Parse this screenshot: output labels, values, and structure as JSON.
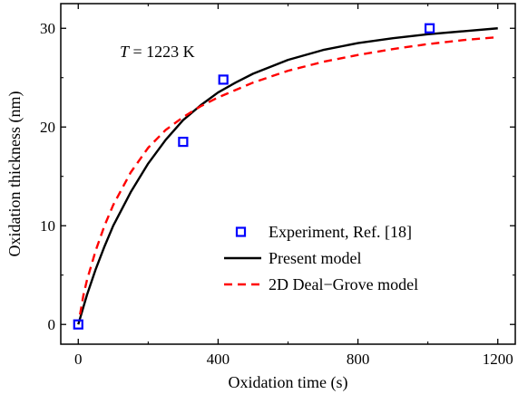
{
  "chart_data": {
    "type": "line",
    "xlabel": "Oxidation time (s)",
    "ylabel": "Oxidation thickness (nm)",
    "xlim": [
      -50,
      1250
    ],
    "ylim": [
      -2,
      32.5
    ],
    "xticks": [
      0,
      400,
      800,
      1200
    ],
    "yticks": [
      0,
      10,
      20,
      30
    ],
    "grid": false,
    "legend_position": "center-right",
    "annotation": {
      "var": "T",
      "rest": " = 1223 K"
    },
    "series": [
      {
        "name": "Experiment, Ref. [18]",
        "kind": "scatter",
        "marker": "open-square",
        "color": "#0000ff",
        "x": [
          0,
          300,
          415,
          1005
        ],
        "y": [
          0,
          18.5,
          24.8,
          30
        ]
      },
      {
        "name": "Present model",
        "kind": "line",
        "style": "solid",
        "color": "#000000",
        "x": [
          0,
          25,
          50,
          75,
          100,
          150,
          200,
          250,
          300,
          350,
          400,
          450,
          500,
          600,
          700,
          800,
          900,
          1000,
          1100,
          1200
        ],
        "y": [
          0,
          3.0,
          5.6,
          7.9,
          10.0,
          13.4,
          16.3,
          18.7,
          20.7,
          22.2,
          23.5,
          24.5,
          25.4,
          26.8,
          27.8,
          28.5,
          29.0,
          29.4,
          29.7,
          30.0
        ]
      },
      {
        "name": "2D Deal−Grove model",
        "kind": "line",
        "style": "dashed",
        "color": "#ff0000",
        "x": [
          5,
          15,
          25,
          50,
          75,
          100,
          150,
          200,
          250,
          300,
          350,
          400,
          500,
          600,
          700,
          800,
          900,
          1000,
          1100,
          1200
        ],
        "y": [
          1.0,
          3.0,
          4.5,
          7.5,
          10.0,
          12.1,
          15.4,
          17.9,
          19.7,
          21.0,
          22.1,
          23.0,
          24.5,
          25.7,
          26.6,
          27.3,
          27.9,
          28.4,
          28.8,
          29.1
        ]
      }
    ]
  }
}
